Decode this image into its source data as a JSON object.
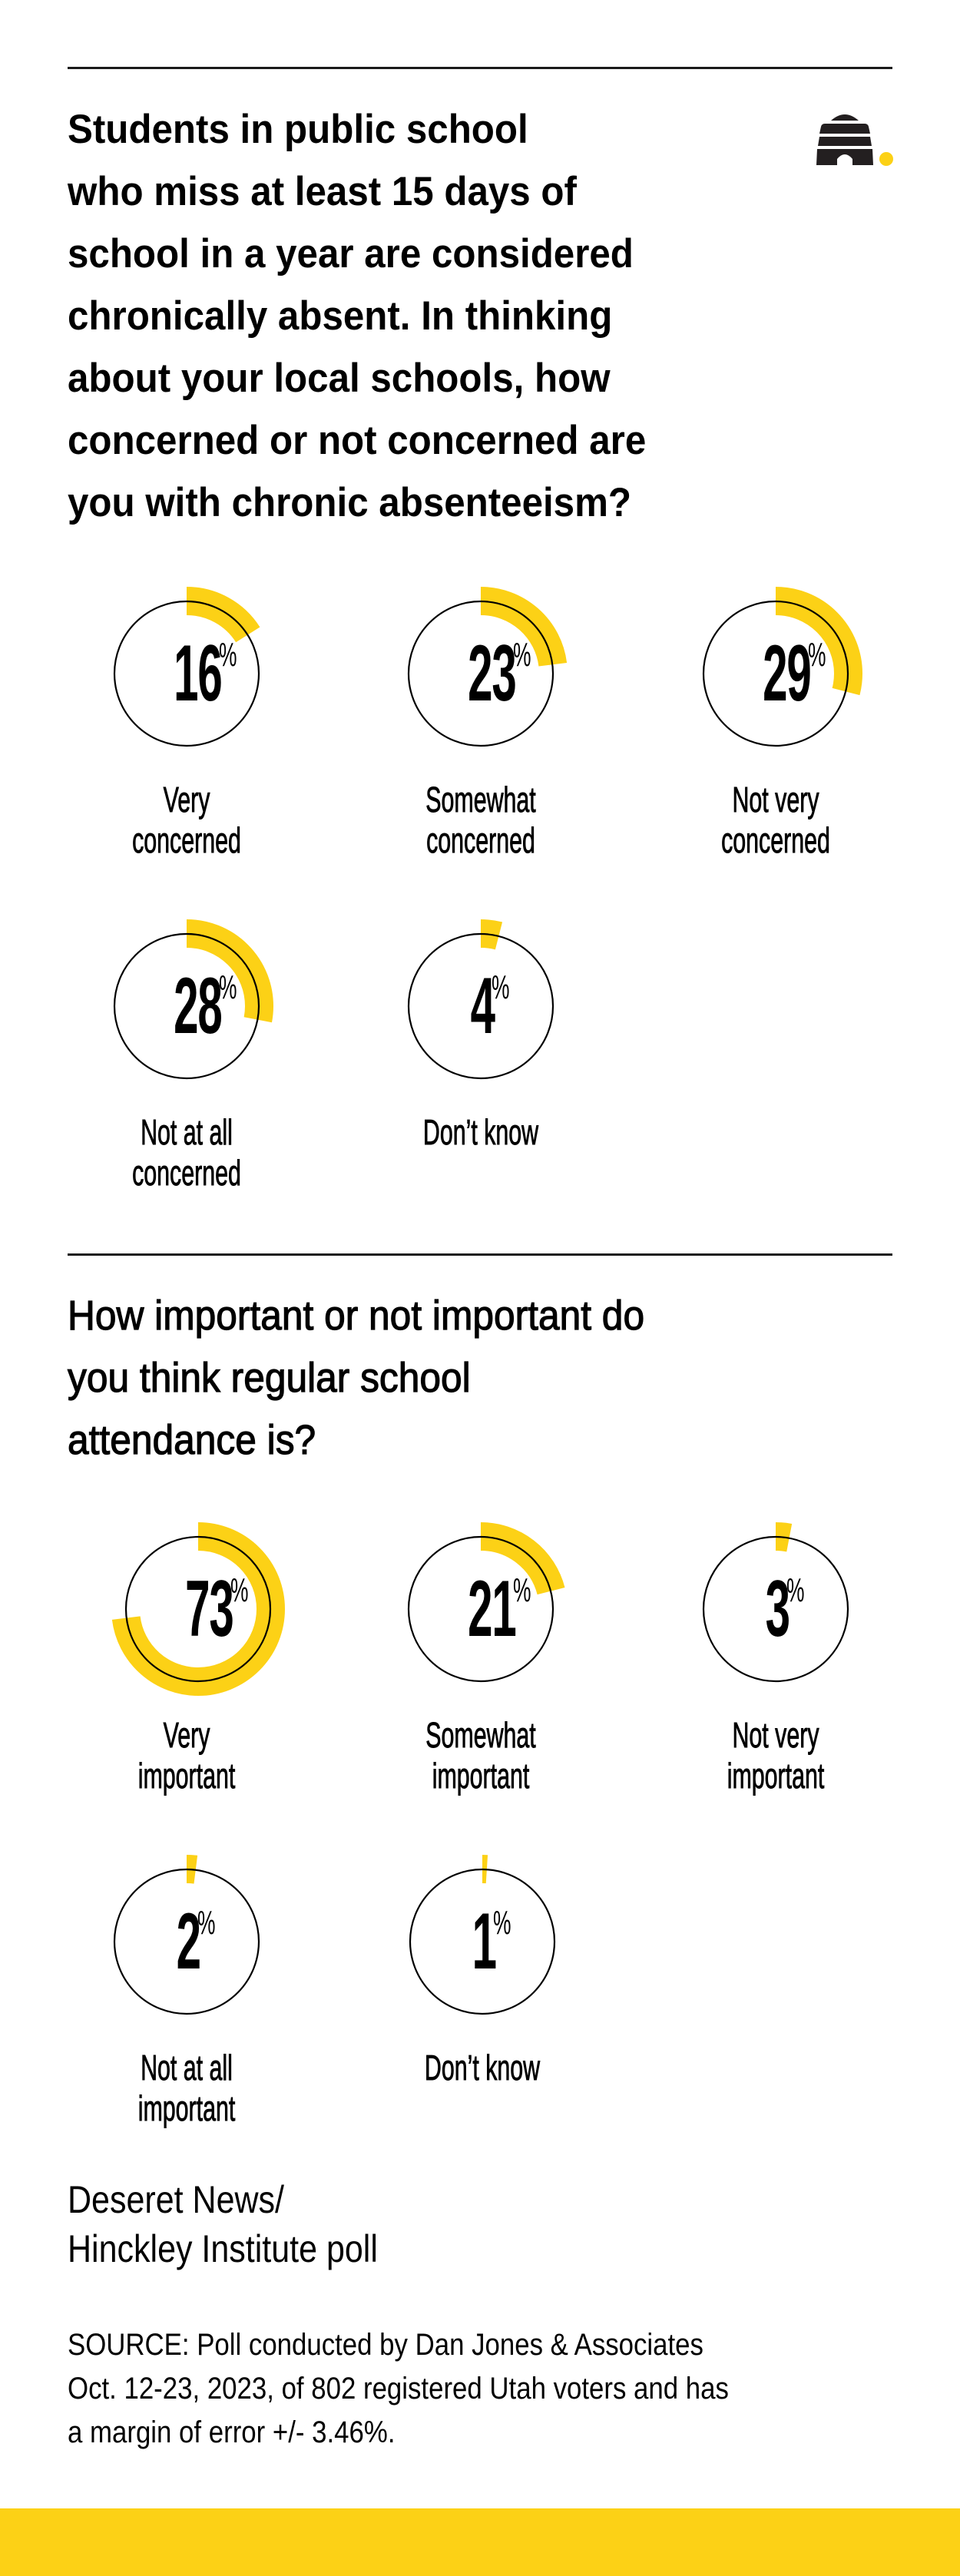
{
  "colors": {
    "accent_yellow": "#FCD116",
    "ring_stroke": "#000000",
    "rule": "#1a1a1a",
    "text": "#000000",
    "background": "#ffffff"
  },
  "logo": {
    "icon": "beehive-icon",
    "dot_color": "#FCD116"
  },
  "section1": {
    "question_lines": [
      "Students in public school",
      "who miss at least 15 days of",
      "school in a year are considered",
      "chronically absent. In thinking",
      "about your local schools, how",
      "concerned or not concerned are",
      "you with chronic absenteeism?"
    ],
    "items": [
      {
        "value": "16",
        "pct_sign": "%",
        "label_lines": [
          "Very",
          "concerned"
        ]
      },
      {
        "value": "23",
        "pct_sign": "%",
        "label_lines": [
          "Somewhat",
          "concerned"
        ]
      },
      {
        "value": "29",
        "pct_sign": "%",
        "label_lines": [
          "Not very",
          "concerned"
        ]
      },
      {
        "value": "28",
        "pct_sign": "%",
        "label_lines": [
          "Not at all",
          "concerned"
        ]
      },
      {
        "value": "4",
        "pct_sign": "%",
        "label_lines": [
          "Don’t know"
        ]
      }
    ]
  },
  "section2": {
    "question_lines": [
      "How important or not important do",
      "you think regular school",
      "attendance is?"
    ],
    "items": [
      {
        "value": "73",
        "pct_sign": "%",
        "label_lines": [
          "Very",
          "important"
        ]
      },
      {
        "value": "21",
        "pct_sign": "%",
        "label_lines": [
          "Somewhat",
          "important"
        ]
      },
      {
        "value": "3",
        "pct_sign": "%",
        "label_lines": [
          "Not very",
          "important"
        ]
      },
      {
        "value": "2",
        "pct_sign": "%",
        "label_lines": [
          "Not at all",
          "important"
        ]
      },
      {
        "value": "1",
        "pct_sign": "%",
        "label_lines": [
          "Don’t know"
        ]
      }
    ]
  },
  "credit_lines": [
    "Deseret News/",
    "Hinckley Institute poll"
  ],
  "source_lines": [
    "SOURCE: Poll conducted by Dan Jones & Associates",
    "Oct. 12-23, 2023, of 802 registered Utah voters and has",
    "a margin of error +/- 3.46%."
  ],
  "chart_data": [
    {
      "type": "pie",
      "title": "Students in public school who miss at least 15 days of school in a year are considered chronically absent. In thinking about your local schools, how concerned or not concerned are you with chronic absenteeism?",
      "categories": [
        "Very concerned",
        "Somewhat concerned",
        "Not very concerned",
        "Not at all concerned",
        "Don’t know"
      ],
      "values": [
        16,
        23,
        29,
        28,
        4
      ],
      "unit": "%",
      "style": "radial progress rings, yellow arc from 12 o'clock clockwise"
    },
    {
      "type": "pie",
      "title": "How important or not important do you think regular school attendance is?",
      "categories": [
        "Very important",
        "Somewhat important",
        "Not very important",
        "Not at all important",
        "Don’t know"
      ],
      "values": [
        73,
        21,
        3,
        2,
        1
      ],
      "unit": "%",
      "style": "radial progress rings, yellow arc from 12 o'clock clockwise"
    }
  ]
}
